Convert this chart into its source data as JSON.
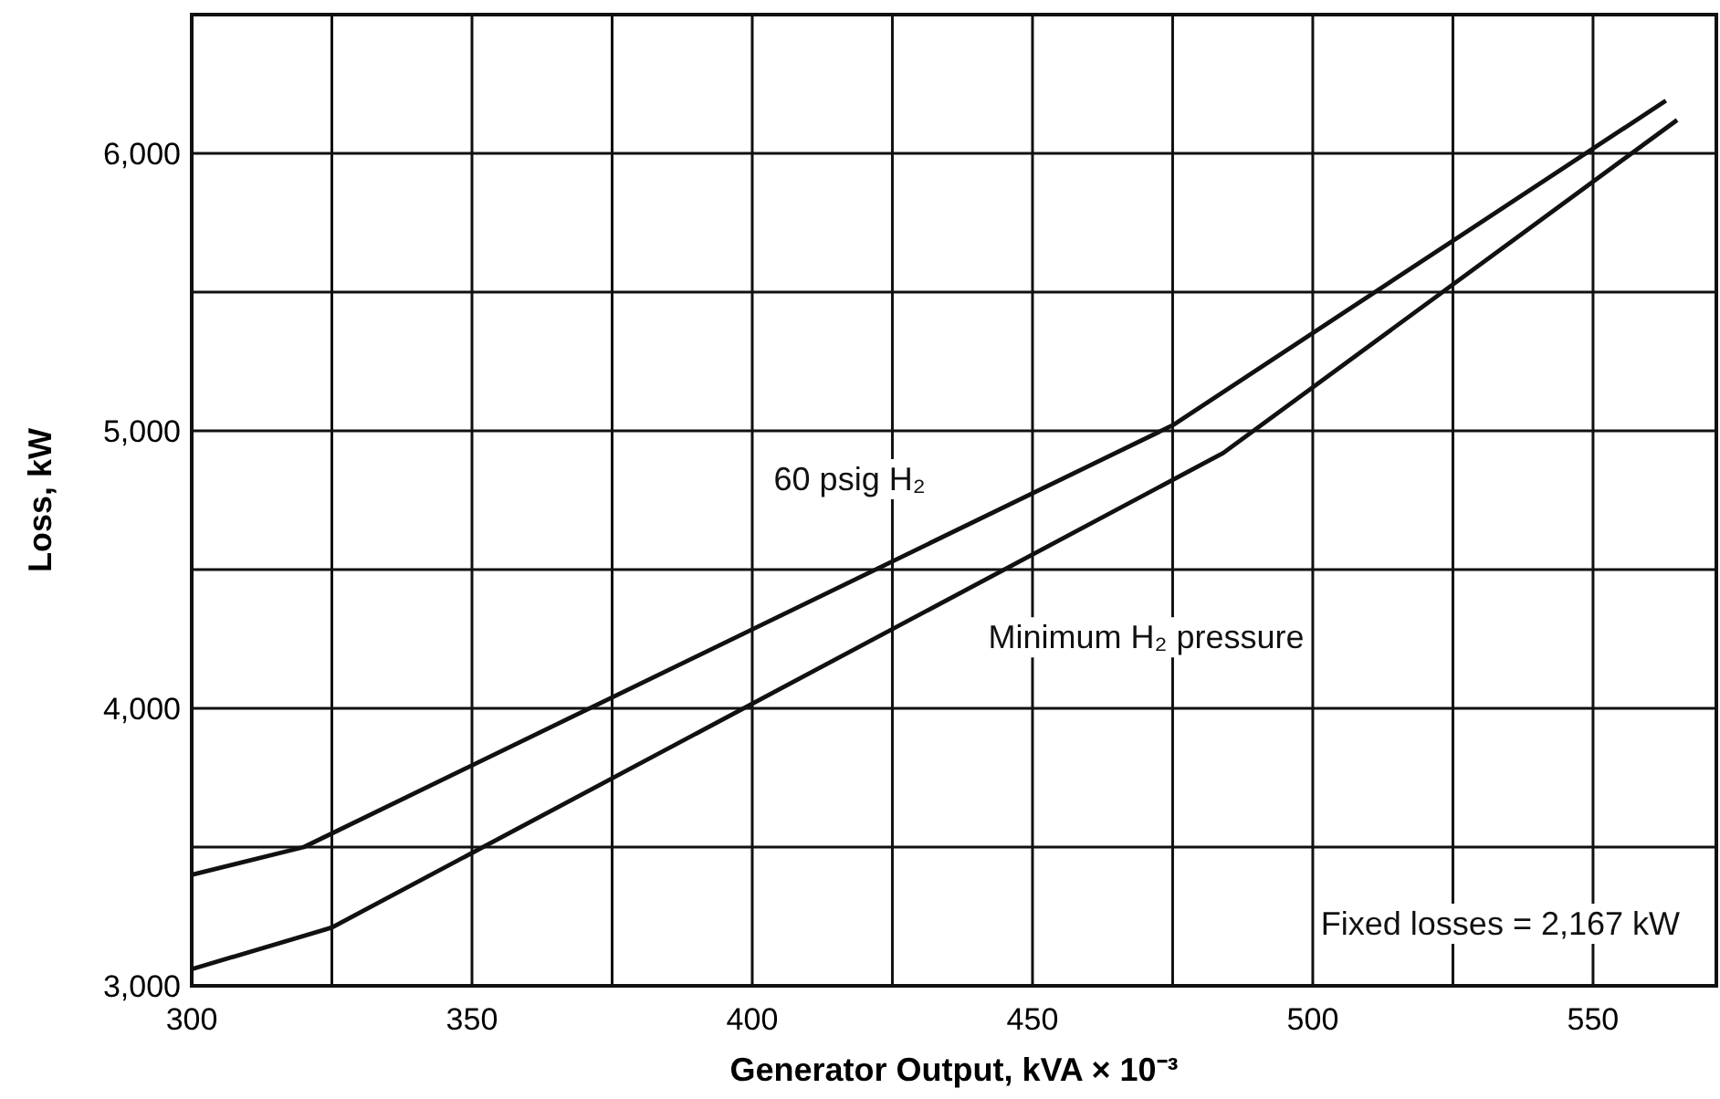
{
  "chart_data": {
    "type": "line",
    "xlabel": "Generator Output, kVA × 10⁻³",
    "ylabel": "Loss, kW",
    "xlim": [
      300,
      572
    ],
    "ylim": [
      3000,
      6500
    ],
    "xticks": [
      300,
      {
        "value": 325,
        "label": null
      },
      350,
      {
        "value": 375,
        "label": null
      },
      400,
      {
        "value": 425,
        "label": null
      },
      450,
      {
        "value": 475,
        "label": null
      },
      500,
      {
        "value": 525,
        "label": null
      },
      550
    ],
    "yticks": [
      {
        "value": 3000,
        "label": "3,000"
      },
      {
        "value": 3500,
        "label": null
      },
      {
        "value": 4000,
        "label": "4,000"
      },
      {
        "value": 4500,
        "label": null
      },
      {
        "value": 5000,
        "label": "5,000"
      },
      {
        "value": 5500,
        "label": null
      },
      {
        "value": 6000,
        "label": "6,000"
      }
    ],
    "grid": true,
    "marker": "none",
    "line_style": "solid",
    "series": [
      {
        "name": "60 psig H₂",
        "color": "#111111",
        "x": [
          300,
          320,
          475,
          563
        ],
        "values": [
          3400,
          3500,
          5020,
          6190
        ]
      },
      {
        "name": "Minimum H₂ pressure",
        "color": "#111111",
        "x": [
          300,
          325,
          484,
          565
        ],
        "values": [
          3060,
          3210,
          4920,
          6120
        ]
      }
    ],
    "annotations": [
      "Fixed losses = 2,167 kW"
    ]
  }
}
